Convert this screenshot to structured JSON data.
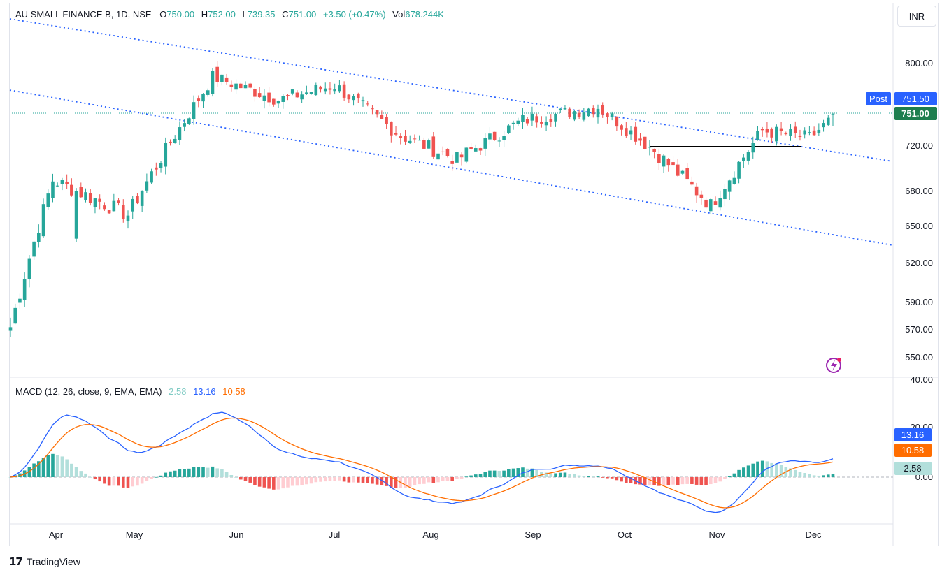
{
  "header": {
    "symbol": "AU SMALL FINANCE B, 1D, NSE",
    "open_label": "O",
    "open": "750.00",
    "high_label": "H",
    "high": "752.00",
    "low_label": "L",
    "low": "739.35",
    "close_label": "C",
    "close": "751.00",
    "change": "+3.50 (+0.47%)",
    "volume_label": "Vol",
    "volume": "678.244K"
  },
  "currency_button": "INR",
  "branding": "TradingView",
  "macd_legend": {
    "title": "MACD (12, 26, close, 9, EMA, EMA)",
    "histogram": "2.58",
    "macd": "13.16",
    "signal": "10.58"
  },
  "colors": {
    "up": "#26a69a",
    "down": "#ef5350",
    "hist_up_strong": "#26a69a",
    "hist_up_weak": "#b2dfdb",
    "hist_down_strong": "#ef5350",
    "hist_down_weak": "#ffcdd2",
    "macd_line": "#2962ff",
    "signal_line": "#ff6d00",
    "trendline": "#2962ff",
    "post_tag": "#2962ff"
  },
  "chart_data": [
    {
      "type": "candlestick",
      "title": "AU SMALL FINANCE B, 1D, NSE",
      "ylim": [
        545,
        810
      ],
      "y_ticks": [
        "800.00",
        "720.00",
        "680.00",
        "650.00",
        "620.00",
        "590.00",
        "570.00",
        "550.00"
      ],
      "x_ticks": [
        "Apr",
        "May",
        "Jun",
        "Jul",
        "Aug",
        "Sep",
        "Oct",
        "Nov",
        "Dec"
      ],
      "price_tags": [
        {
          "label": "Post",
          "value": "751.50"
        },
        {
          "label": "",
          "value": "751.00"
        }
      ],
      "series_close_anchors": [
        {
          "month": "Mar end",
          "close": 572
        },
        {
          "month": "Apr mid",
          "close": 690
        },
        {
          "month": "May start",
          "close": 660
        },
        {
          "month": "May end",
          "close": 787
        },
        {
          "month": "Jun mid",
          "close": 765
        },
        {
          "month": "Jul start",
          "close": 779
        },
        {
          "month": "Jul end",
          "close": 730
        },
        {
          "month": "Aug mid",
          "close": 708
        },
        {
          "month": "Sep start",
          "close": 745
        },
        {
          "month": "Sep end",
          "close": 758
        },
        {
          "month": "Oct mid",
          "close": 716
        },
        {
          "month": "Oct end",
          "close": 668
        },
        {
          "month": "Nov mid",
          "close": 735
        },
        {
          "month": "Nov end",
          "close": 728
        },
        {
          "month": "Dec start",
          "close": 751
        }
      ],
      "last": {
        "open": 750.0,
        "high": 752.0,
        "low": 739.35,
        "close": 751.0
      }
    },
    {
      "type": "macd",
      "title": "MACD (12, 26, close, 9, EMA, EMA)",
      "y_ticks": [
        "40.00",
        "20.00",
        "0.00"
      ],
      "last": {
        "histogram": 2.58,
        "macd": 13.16,
        "signal": 10.58
      }
    }
  ]
}
